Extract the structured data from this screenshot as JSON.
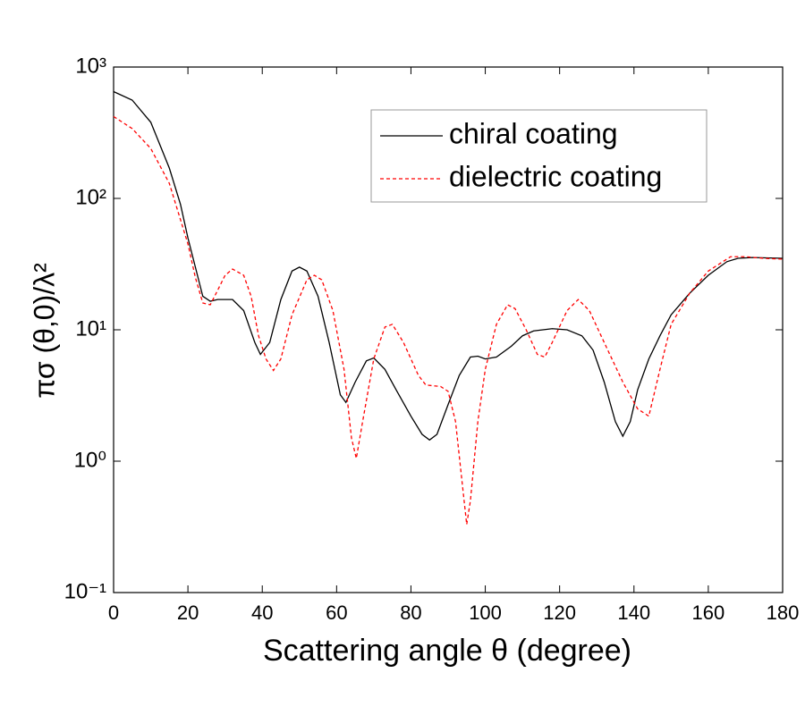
{
  "chart_data": {
    "type": "line",
    "xlabel": "Scattering angle θ (degree)",
    "ylabel": "πσ (θ,0)/λ²",
    "xlim": [
      0,
      180
    ],
    "xticks": [
      0,
      20,
      40,
      60,
      80,
      100,
      120,
      140,
      160,
      180
    ],
    "ylim": [
      0.1,
      1000
    ],
    "log_y": true,
    "yticks": [
      {
        "value": 0.1,
        "label": "10⁻¹"
      },
      {
        "value": 1,
        "label": "10⁰"
      },
      {
        "value": 10,
        "label": "10¹"
      },
      {
        "value": 100,
        "label": "10²"
      },
      {
        "value": 1000,
        "label": "10³"
      }
    ],
    "grid": false,
    "legend": "northeast",
    "series": [
      {
        "name": "chiral coating",
        "color": "#000000",
        "dash": false,
        "x": [
          0,
          5,
          10,
          15,
          18,
          20,
          22,
          24,
          26,
          28,
          32,
          35,
          38,
          39.5,
          42,
          45,
          48,
          50,
          52,
          55,
          58,
          61,
          62.5,
          65,
          68,
          70,
          73,
          76,
          80,
          83,
          85,
          87,
          90,
          93,
          96,
          98,
          100,
          103,
          107,
          110,
          113,
          118,
          122,
          126,
          129,
          132,
          135,
          137,
          139,
          141,
          144,
          147,
          150,
          155,
          160,
          165,
          168,
          172,
          180
        ],
        "values": [
          650,
          560,
          380,
          170,
          90,
          50,
          30,
          18,
          16.5,
          17,
          17,
          14,
          8,
          6.5,
          8,
          17,
          28,
          30,
          28,
          18,
          8,
          3.2,
          2.8,
          4,
          5.8,
          6.1,
          5,
          3.5,
          2.2,
          1.6,
          1.45,
          1.6,
          2.7,
          4.5,
          6.2,
          6.3,
          6,
          6.2,
          7.5,
          9,
          9.8,
          10.2,
          10,
          9,
          7,
          4,
          2,
          1.55,
          2,
          3.5,
          6,
          9,
          13,
          19,
          26,
          33,
          35,
          35.5,
          35
        ]
      },
      {
        "name": "dielectric coating",
        "color": "#ff0000",
        "dash": true,
        "x": [
          0,
          5,
          10,
          15,
          20,
          22,
          24,
          26,
          28,
          30,
          32,
          35,
          37,
          39,
          41,
          43,
          45,
          48,
          52,
          54,
          56,
          59,
          62,
          64,
          65.3,
          67,
          70,
          73,
          75,
          78,
          82,
          84,
          88,
          90,
          92,
          94,
          95,
          96,
          98,
          100,
          103,
          106,
          108,
          111,
          114,
          116,
          118,
          122,
          125,
          128,
          132,
          137,
          141,
          144,
          147,
          150,
          155,
          160,
          166,
          170,
          175,
          180
        ],
        "values": [
          420,
          340,
          240,
          130,
          45,
          25,
          16,
          15.5,
          20,
          26,
          29,
          26,
          18,
          9,
          6,
          4.9,
          6,
          13,
          24,
          26,
          24,
          14,
          5,
          1.5,
          1.05,
          2,
          6,
          10.5,
          11,
          8,
          4.5,
          3.8,
          3.7,
          3.4,
          2,
          0.6,
          0.33,
          0.5,
          2,
          5,
          11,
          15.5,
          14.5,
          10,
          6.5,
          6.2,
          8,
          14,
          17,
          14,
          8,
          4,
          2.5,
          2.2,
          5,
          11,
          19,
          28,
          36,
          36,
          35,
          34.5
        ]
      }
    ]
  }
}
